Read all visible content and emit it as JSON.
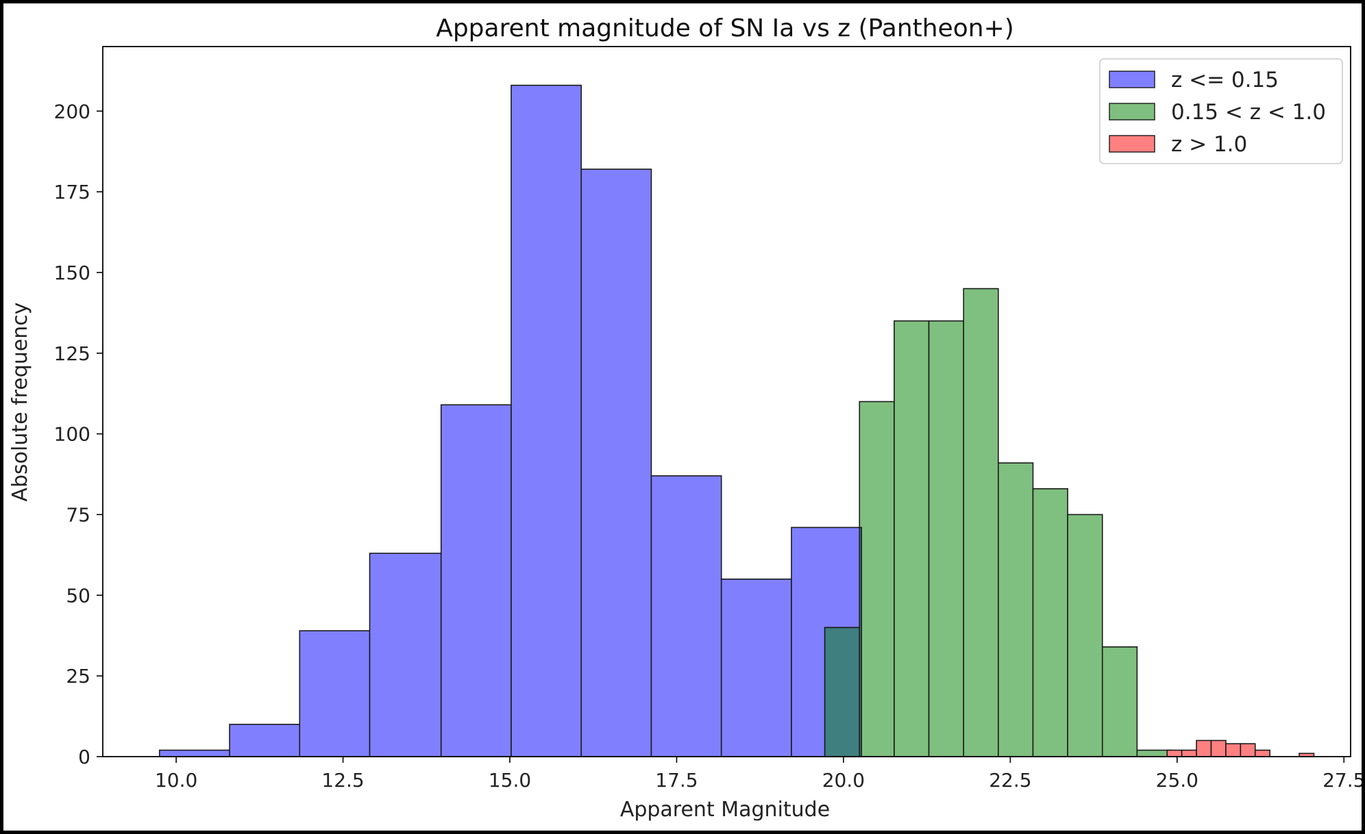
{
  "chart_data": {
    "type": "histogram",
    "title": "Apparent magnitude of SN Ia vs z (Pantheon+)",
    "xlabel": "Apparent Magnitude",
    "ylabel": "Absolute frequency",
    "xlim": [
      8.9,
      27.6
    ],
    "ylim": [
      0,
      220
    ],
    "xticks": [
      "10.0",
      "12.5",
      "15.0",
      "17.5",
      "20.0",
      "22.5",
      "25.0",
      "27.5"
    ],
    "yticks": [
      "0",
      "25",
      "50",
      "75",
      "100",
      "125",
      "150",
      "175",
      "200"
    ],
    "grid": false,
    "legend_position": "top-right",
    "series": [
      {
        "name": "z <= 0.15",
        "color": "#8080ff",
        "bins": [
          {
            "x0": 9.75,
            "x1": 10.8,
            "count": 2
          },
          {
            "x0": 10.8,
            "x1": 11.85,
            "count": 10
          },
          {
            "x0": 11.85,
            "x1": 12.9,
            "count": 39
          },
          {
            "x0": 12.9,
            "x1": 13.97,
            "count": 63
          },
          {
            "x0": 13.97,
            "x1": 15.02,
            "count": 109
          },
          {
            "x0": 15.02,
            "x1": 16.07,
            "count": 208
          },
          {
            "x0": 16.07,
            "x1": 17.12,
            "count": 182
          },
          {
            "x0": 17.12,
            "x1": 18.17,
            "count": 87
          },
          {
            "x0": 18.17,
            "x1": 19.22,
            "count": 55
          },
          {
            "x0": 19.22,
            "x1": 20.27,
            "count": 71
          }
        ]
      },
      {
        "name": "0.15 < z < 1.0",
        "color": "#7fbf7f",
        "bins": [
          {
            "x0": 19.72,
            "x1": 20.24,
            "count": 40
          },
          {
            "x0": 20.24,
            "x1": 20.76,
            "count": 110
          },
          {
            "x0": 20.76,
            "x1": 21.28,
            "count": 135
          },
          {
            "x0": 21.28,
            "x1": 21.8,
            "count": 135
          },
          {
            "x0": 21.8,
            "x1": 22.32,
            "count": 145
          },
          {
            "x0": 22.32,
            "x1": 22.84,
            "count": 91
          },
          {
            "x0": 22.84,
            "x1": 23.36,
            "count": 83
          },
          {
            "x0": 23.36,
            "x1": 23.88,
            "count": 75
          },
          {
            "x0": 23.88,
            "x1": 24.4,
            "count": 34
          },
          {
            "x0": 24.4,
            "x1": 24.92,
            "count": 2
          },
          {
            "x0": 24.92,
            "x1": 25.44,
            "count": 1
          }
        ]
      },
      {
        "name": "z > 1.0",
        "color": "#ff8080",
        "bins": [
          {
            "x0": 24.85,
            "x1": 25.07,
            "count": 2
          },
          {
            "x0": 25.07,
            "x1": 25.29,
            "count": 2
          },
          {
            "x0": 25.29,
            "x1": 25.51,
            "count": 5
          },
          {
            "x0": 25.51,
            "x1": 25.73,
            "count": 5
          },
          {
            "x0": 25.73,
            "x1": 25.95,
            "count": 4
          },
          {
            "x0": 25.95,
            "x1": 26.17,
            "count": 4
          },
          {
            "x0": 26.17,
            "x1": 26.39,
            "count": 2
          },
          {
            "x0": 26.39,
            "x1": 26.61,
            "count": 0
          },
          {
            "x0": 26.61,
            "x1": 26.83,
            "count": 0
          },
          {
            "x0": 26.83,
            "x1": 27.05,
            "count": 1
          }
        ]
      }
    ],
    "overlap_color": "#3f7f7f"
  }
}
